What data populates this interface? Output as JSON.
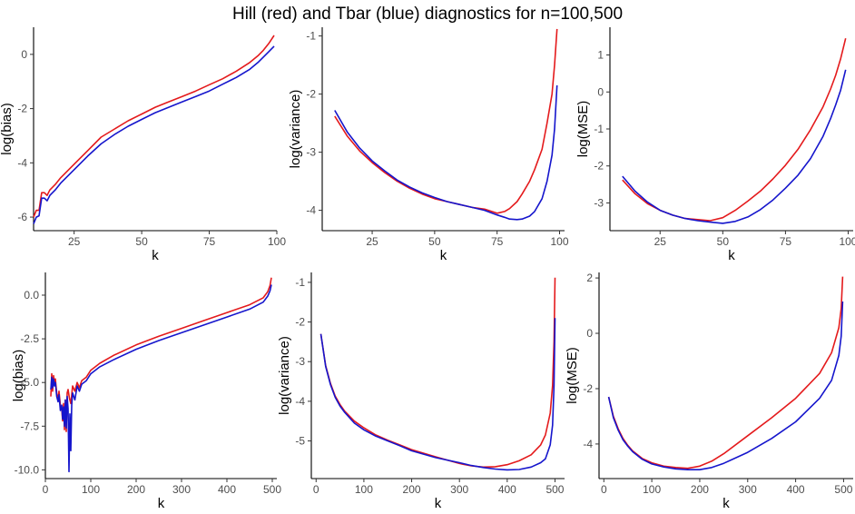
{
  "figure": {
    "title": "Hill (red) and Tbar (blue) diagnostics for n=100,500"
  },
  "colors": {
    "hill": "#e41a1c",
    "tbar": "#1515cc"
  },
  "chart_data": [
    {
      "type": "line",
      "title": "",
      "xlabel": "k",
      "ylabel": "log(bias)",
      "xlim": [
        10,
        100
      ],
      "ylim": [
        -6.5,
        1.0
      ],
      "xticks": [
        25,
        50,
        75,
        100
      ],
      "yticks": [
        -6,
        -4,
        -2,
        0
      ],
      "grid": false,
      "series": [
        {
          "name": "Hill",
          "color": "#e41a1c",
          "x": [
            10,
            11,
            12,
            13,
            14,
            15,
            16,
            18,
            20,
            25,
            30,
            35,
            40,
            45,
            50,
            55,
            60,
            65,
            70,
            75,
            80,
            85,
            90,
            93,
            95,
            97,
            99
          ],
          "y": [
            -6.0,
            -5.75,
            -5.75,
            -5.1,
            -5.1,
            -5.2,
            -5.0,
            -4.8,
            -4.55,
            -4.05,
            -3.55,
            -3.05,
            -2.75,
            -2.45,
            -2.2,
            -1.95,
            -1.75,
            -1.55,
            -1.35,
            -1.12,
            -0.9,
            -0.62,
            -0.3,
            -0.05,
            0.15,
            0.4,
            0.7
          ]
        },
        {
          "name": "Tbar",
          "color": "#1515cc",
          "x": [
            10,
            11,
            12,
            13,
            14,
            15,
            16,
            18,
            20,
            25,
            30,
            35,
            40,
            45,
            50,
            55,
            60,
            65,
            70,
            75,
            80,
            85,
            90,
            93,
            95,
            97,
            99
          ],
          "y": [
            -6.25,
            -6.0,
            -5.95,
            -5.3,
            -5.3,
            -5.4,
            -5.2,
            -5.0,
            -4.75,
            -4.25,
            -3.75,
            -3.3,
            -2.95,
            -2.65,
            -2.4,
            -2.15,
            -1.95,
            -1.75,
            -1.55,
            -1.35,
            -1.1,
            -0.85,
            -0.55,
            -0.3,
            -0.1,
            0.1,
            0.3
          ]
        }
      ]
    },
    {
      "type": "line",
      "title": "",
      "xlabel": "k",
      "ylabel": "log(variance)",
      "xlim": [
        5,
        102
      ],
      "ylim": [
        -4.35,
        -0.85
      ],
      "xticks": [
        25,
        50,
        75,
        100
      ],
      "yticks": [
        -4,
        -3,
        -2,
        -1
      ],
      "grid": false,
      "series": [
        {
          "name": "Hill",
          "color": "#e41a1c",
          "x": [
            10,
            15,
            20,
            25,
            30,
            35,
            40,
            45,
            50,
            55,
            60,
            65,
            70,
            75,
            78,
            80,
            83,
            85,
            88,
            90,
            93,
            95,
            97,
            98,
            99
          ],
          "y": [
            -2.38,
            -2.72,
            -2.98,
            -3.18,
            -3.35,
            -3.5,
            -3.62,
            -3.72,
            -3.8,
            -3.85,
            -3.9,
            -3.95,
            -3.98,
            -4.05,
            -4.02,
            -3.97,
            -3.85,
            -3.72,
            -3.5,
            -3.3,
            -2.95,
            -2.5,
            -2.0,
            -1.5,
            -0.88
          ]
        },
        {
          "name": "Tbar",
          "color": "#1515cc",
          "x": [
            10,
            15,
            20,
            25,
            30,
            35,
            40,
            45,
            50,
            55,
            60,
            65,
            70,
            75,
            78,
            80,
            83,
            85,
            88,
            90,
            93,
            95,
            97,
            98,
            99
          ],
          "y": [
            -2.28,
            -2.65,
            -2.93,
            -3.15,
            -3.32,
            -3.48,
            -3.6,
            -3.7,
            -3.78,
            -3.85,
            -3.9,
            -3.95,
            -4.0,
            -4.08,
            -4.12,
            -4.15,
            -4.16,
            -4.15,
            -4.1,
            -4.02,
            -3.8,
            -3.5,
            -3.05,
            -2.6,
            -1.85
          ]
        }
      ]
    },
    {
      "type": "line",
      "title": "",
      "xlabel": "k",
      "ylabel": "log(MSE)",
      "xlim": [
        5,
        102
      ],
      "ylim": [
        -3.75,
        1.75
      ],
      "xticks": [
        25,
        50,
        75,
        100
      ],
      "yticks": [
        -3,
        -2,
        -1,
        0,
        1
      ],
      "grid": false,
      "series": [
        {
          "name": "Hill",
          "color": "#e41a1c",
          "x": [
            10,
            15,
            20,
            25,
            30,
            35,
            40,
            45,
            50,
            55,
            60,
            65,
            70,
            75,
            80,
            85,
            90,
            93,
            95,
            97,
            99
          ],
          "y": [
            -2.38,
            -2.75,
            -3.02,
            -3.2,
            -3.33,
            -3.42,
            -3.45,
            -3.48,
            -3.4,
            -3.2,
            -2.95,
            -2.68,
            -2.35,
            -1.98,
            -1.55,
            -1.02,
            -0.4,
            0.08,
            0.45,
            0.9,
            1.45
          ]
        },
        {
          "name": "Tbar",
          "color": "#1515cc",
          "x": [
            10,
            15,
            20,
            25,
            30,
            35,
            40,
            45,
            50,
            55,
            60,
            65,
            70,
            75,
            80,
            85,
            90,
            93,
            95,
            97,
            99
          ],
          "y": [
            -2.28,
            -2.68,
            -2.98,
            -3.2,
            -3.33,
            -3.42,
            -3.48,
            -3.52,
            -3.55,
            -3.5,
            -3.38,
            -3.18,
            -2.92,
            -2.6,
            -2.25,
            -1.8,
            -1.2,
            -0.72,
            -0.35,
            0.05,
            0.6
          ]
        }
      ]
    },
    {
      "type": "line",
      "title": "",
      "xlabel": "k",
      "ylabel": "log(bias)",
      "xlim": [
        0,
        510
      ],
      "ylim": [
        -10.5,
        1.3
      ],
      "xticks": [
        0,
        100,
        200,
        300,
        400,
        500
      ],
      "yticks": [
        -10.0,
        -7.5,
        -5.0,
        -2.5,
        0.0
      ],
      "grid": false,
      "series": [
        {
          "name": "Hill",
          "color": "#e41a1c",
          "x": [
            12,
            14,
            16,
            18,
            20,
            22,
            25,
            28,
            30,
            33,
            36,
            38,
            40,
            42,
            44,
            46,
            48,
            50,
            53,
            56,
            60,
            65,
            70,
            75,
            80,
            90,
            100,
            120,
            150,
            200,
            250,
            300,
            350,
            400,
            450,
            480,
            490,
            495,
            498
          ],
          "y": [
            -5.8,
            -4.5,
            -5.5,
            -4.6,
            -5.0,
            -4.8,
            -5.6,
            -6.0,
            -5.5,
            -6.3,
            -6.5,
            -7.2,
            -6.2,
            -7.7,
            -6.0,
            -7.8,
            -5.6,
            -5.4,
            -5.9,
            -6.2,
            -5.2,
            -5.5,
            -5.0,
            -5.3,
            -4.9,
            -4.7,
            -4.3,
            -3.9,
            -3.45,
            -2.85,
            -2.35,
            -1.9,
            -1.45,
            -1.0,
            -0.55,
            -0.15,
            0.2,
            0.55,
            1.0
          ]
        },
        {
          "name": "Tbar",
          "color": "#1515cc",
          "x": [
            12,
            14,
            16,
            18,
            20,
            22,
            25,
            28,
            30,
            33,
            36,
            38,
            40,
            42,
            44,
            46,
            48,
            50,
            52,
            54,
            56,
            58,
            60,
            65,
            70,
            75,
            80,
            90,
            100,
            120,
            150,
            200,
            250,
            300,
            350,
            400,
            450,
            480,
            490,
            495,
            498
          ],
          "y": [
            -5.4,
            -4.7,
            -5.3,
            -4.8,
            -5.2,
            -5.0,
            -5.8,
            -6.1,
            -5.7,
            -6.6,
            -6.3,
            -7.1,
            -6.4,
            -7.5,
            -6.0,
            -7.6,
            -5.8,
            -6.5,
            -10.1,
            -6.8,
            -8.9,
            -6.3,
            -5.6,
            -6.0,
            -5.2,
            -5.5,
            -5.1,
            -4.9,
            -4.5,
            -4.1,
            -3.7,
            -3.1,
            -2.6,
            -2.15,
            -1.7,
            -1.25,
            -0.8,
            -0.4,
            -0.05,
            0.25,
            0.6
          ]
        }
      ]
    },
    {
      "type": "line",
      "title": "",
      "xlabel": "k",
      "ylabel": "log(variance)",
      "xlim": [
        -10,
        520
      ],
      "ylim": [
        -5.95,
        -0.75
      ],
      "xticks": [
        0,
        100,
        200,
        300,
        400,
        500
      ],
      "yticks": [
        -5,
        -4,
        -3,
        -2,
        -1
      ],
      "grid": false,
      "series": [
        {
          "name": "Hill",
          "color": "#e41a1c",
          "x": [
            10,
            20,
            30,
            40,
            50,
            60,
            80,
            100,
            125,
            150,
            175,
            200,
            250,
            300,
            325,
            350,
            375,
            400,
            425,
            450,
            470,
            480,
            490,
            495,
            498,
            500
          ],
          "y": [
            -2.3,
            -3.1,
            -3.55,
            -3.87,
            -4.08,
            -4.25,
            -4.5,
            -4.67,
            -4.85,
            -4.98,
            -5.1,
            -5.22,
            -5.4,
            -5.57,
            -5.63,
            -5.66,
            -5.65,
            -5.6,
            -5.5,
            -5.35,
            -5.1,
            -4.85,
            -4.3,
            -3.6,
            -2.5,
            -0.88
          ]
        },
        {
          "name": "Tbar",
          "color": "#1515cc",
          "x": [
            10,
            20,
            30,
            40,
            50,
            60,
            80,
            100,
            125,
            150,
            175,
            200,
            250,
            300,
            325,
            350,
            375,
            400,
            425,
            450,
            470,
            480,
            490,
            495,
            498,
            500
          ],
          "y": [
            -2.3,
            -3.12,
            -3.58,
            -3.9,
            -4.12,
            -4.28,
            -4.55,
            -4.72,
            -4.88,
            -5.0,
            -5.12,
            -5.25,
            -5.42,
            -5.55,
            -5.62,
            -5.67,
            -5.71,
            -5.73,
            -5.72,
            -5.66,
            -5.55,
            -5.45,
            -5.1,
            -4.6,
            -3.6,
            -1.9
          ]
        }
      ]
    },
    {
      "type": "line",
      "title": "",
      "xlabel": "k",
      "ylabel": "log(MSE)",
      "xlim": [
        -10,
        520
      ],
      "ylim": [
        -5.25,
        2.2
      ],
      "xticks": [
        0,
        100,
        200,
        300,
        400,
        500
      ],
      "yticks": [
        -4,
        -2,
        0,
        2
      ],
      "grid": false,
      "series": [
        {
          "name": "Hill",
          "color": "#e41a1c",
          "x": [
            10,
            20,
            30,
            40,
            50,
            60,
            80,
            100,
            125,
            150,
            175,
            200,
            225,
            250,
            300,
            350,
            400,
            450,
            475,
            490,
            495,
            498
          ],
          "y": [
            -2.3,
            -3.0,
            -3.45,
            -3.8,
            -4.05,
            -4.25,
            -4.52,
            -4.68,
            -4.8,
            -4.85,
            -4.88,
            -4.8,
            -4.62,
            -4.35,
            -3.7,
            -3.05,
            -2.35,
            -1.45,
            -0.7,
            0.2,
            0.9,
            2.05
          ]
        },
        {
          "name": "Tbar",
          "color": "#1515cc",
          "x": [
            10,
            20,
            30,
            40,
            50,
            60,
            80,
            100,
            125,
            150,
            175,
            200,
            225,
            250,
            300,
            350,
            400,
            450,
            475,
            490,
            495,
            498
          ],
          "y": [
            -2.3,
            -3.05,
            -3.5,
            -3.85,
            -4.08,
            -4.28,
            -4.55,
            -4.72,
            -4.83,
            -4.9,
            -4.93,
            -4.93,
            -4.85,
            -4.7,
            -4.3,
            -3.8,
            -3.2,
            -2.35,
            -1.7,
            -0.8,
            -0.1,
            1.15
          ]
        }
      ]
    }
  ]
}
